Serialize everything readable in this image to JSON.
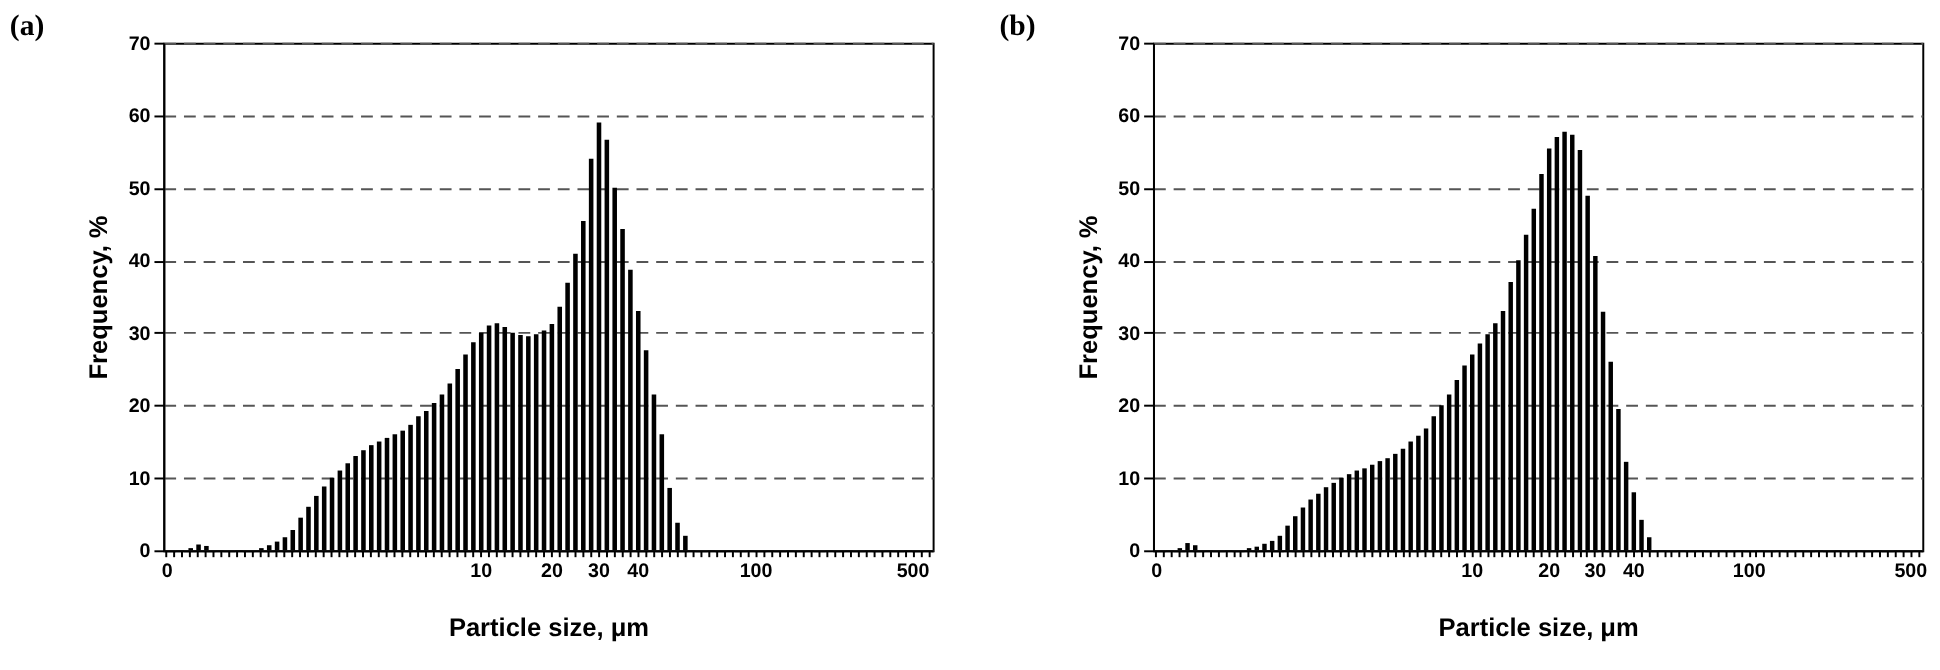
{
  "chart_data": [
    {
      "type": "bar",
      "title": "(a)",
      "xlabel": "Particle size, μm",
      "ylabel": "Frequency, %",
      "categories": [
        "0",
        null,
        null,
        null,
        null,
        null,
        null,
        null,
        null,
        null,
        null,
        null,
        null,
        null,
        null,
        null,
        null,
        null,
        null,
        null,
        null,
        null,
        null,
        null,
        null,
        null,
        null,
        null,
        null,
        null,
        null,
        null,
        null,
        null,
        null,
        null,
        null,
        null,
        null,
        null,
        "10",
        null,
        null,
        null,
        null,
        null,
        null,
        null,
        null,
        "20",
        null,
        null,
        null,
        null,
        null,
        "30",
        null,
        null,
        null,
        null,
        "40",
        null,
        null,
        null,
        null,
        null,
        null,
        null,
        null,
        null,
        null,
        null,
        null,
        null,
        null,
        "100",
        null,
        null,
        null,
        null,
        null,
        null,
        null,
        null,
        null,
        null,
        null,
        null,
        null,
        null,
        null,
        null,
        null,
        null,
        null,
        "500",
        null,
        null
      ],
      "values": [
        0,
        0,
        0,
        0.3,
        0.8,
        0.6,
        0,
        0,
        0,
        0,
        0,
        0,
        0.3,
        0.7,
        1.2,
        1.8,
        2.8,
        4.5,
        6,
        7.5,
        8.8,
        10,
        11,
        12,
        13,
        13.8,
        14.5,
        15,
        15.5,
        16,
        16.5,
        17.3,
        18.5,
        19.2,
        20.3,
        21.5,
        23,
        25,
        27,
        28.7,
        30,
        31,
        31.3,
        30.8,
        30,
        29.7,
        29.5,
        29.8,
        30.3,
        31.2,
        33.6,
        36.9,
        40.9,
        45.4,
        54,
        59,
        56.6,
        50,
        44.3,
        38.7,
        33,
        27.6,
        21.5,
        16,
        8.6,
        3.8,
        2,
        0,
        0,
        0,
        0,
        0,
        0,
        0,
        0,
        0,
        0,
        0,
        0,
        0,
        0,
        0,
        0,
        0,
        0,
        0,
        0,
        0,
        0,
        0,
        0,
        0,
        0,
        0,
        0,
        0,
        0,
        0
      ],
      "color": "#000000",
      "ylim": [
        0,
        70
      ],
      "yticks": [
        0,
        10,
        20,
        30,
        40,
        50,
        60,
        70
      ],
      "grid": "y",
      "line_style": "dashed"
    },
    {
      "type": "bar",
      "title": "(b)",
      "xlabel": "Particle size, μm",
      "ylabel": "Frequency, %",
      "categories": [
        "0",
        null,
        null,
        null,
        null,
        null,
        null,
        null,
        null,
        null,
        null,
        null,
        null,
        null,
        null,
        null,
        null,
        null,
        null,
        null,
        null,
        null,
        null,
        null,
        null,
        null,
        null,
        null,
        null,
        null,
        null,
        null,
        null,
        null,
        null,
        null,
        null,
        null,
        null,
        null,
        null,
        "10",
        null,
        null,
        null,
        null,
        null,
        null,
        null,
        null,
        null,
        "20",
        null,
        null,
        null,
        null,
        null,
        "30",
        null,
        null,
        null,
        null,
        "40",
        null,
        null,
        null,
        null,
        null,
        null,
        null,
        null,
        null,
        null,
        null,
        null,
        null,
        null,
        "100",
        null,
        null,
        null,
        null,
        null,
        null,
        null,
        null,
        null,
        null,
        null,
        null,
        null,
        null,
        null,
        null,
        null,
        null,
        null,
        null,
        "500",
        null
      ],
      "values": [
        0,
        0,
        0,
        0.3,
        1.0,
        0.7,
        0,
        0,
        0,
        0,
        0,
        0,
        0.3,
        0.5,
        0.9,
        1.3,
        2,
        3.4,
        4.7,
        5.9,
        7,
        7.8,
        8.7,
        9.3,
        10,
        10.5,
        11,
        11.3,
        11.8,
        12.3,
        12.7,
        13.3,
        14,
        15,
        15.8,
        16.8,
        18.5,
        20,
        21.5,
        23.5,
        25.5,
        27,
        28.5,
        29.8,
        31.3,
        33,
        37,
        40,
        43.5,
        47.1,
        51.9,
        55.4,
        57,
        57.7,
        57.3,
        55.2,
        48.9,
        40.6,
        32.9,
        26,
        19.5,
        12.2,
        8,
        4.2,
        1.8,
        0,
        0,
        0,
        0,
        0,
        0,
        0,
        0,
        0,
        0,
        0,
        0,
        0,
        0,
        0,
        0,
        0,
        0,
        0,
        0,
        0,
        0,
        0,
        0,
        0,
        0,
        0,
        0,
        0,
        0,
        0,
        0,
        0,
        0,
        0
      ],
      "color": "#000000",
      "ylim": [
        0,
        70
      ],
      "yticks": [
        0,
        10,
        20,
        30,
        40,
        50,
        60,
        70
      ],
      "grid": "y",
      "line_style": "dashed"
    }
  ]
}
